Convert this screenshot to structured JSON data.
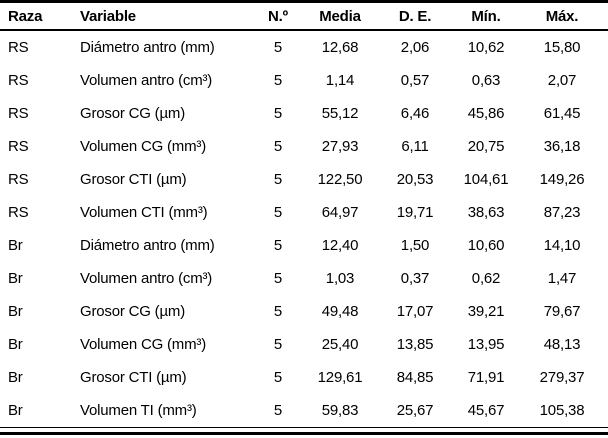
{
  "table": {
    "columns": [
      {
        "label": "Raza"
      },
      {
        "label": "Variable"
      },
      {
        "label": "N.º"
      },
      {
        "label": "Media"
      },
      {
        "label": "D. E."
      },
      {
        "label": "Mín."
      },
      {
        "label": "Máx."
      }
    ],
    "rows": [
      {
        "cells": [
          "RS",
          "Diámetro antro (mm)",
          "5",
          "12,68",
          "2,06",
          "10,62",
          "15,80"
        ]
      },
      {
        "cells": [
          "RS",
          "Volumen antro (cm³)",
          "5",
          "1,14",
          "0,57",
          "0,63",
          "2,07"
        ]
      },
      {
        "cells": [
          "RS",
          "Grosor CG (µm)",
          "5",
          "55,12",
          "6,46",
          "45,86",
          "61,45"
        ]
      },
      {
        "cells": [
          "RS",
          "Volumen CG (mm³)",
          "5",
          "27,93",
          "6,11",
          "20,75",
          "36,18"
        ]
      },
      {
        "cells": [
          "RS",
          "Grosor CTI (µm)",
          "5",
          "122,50",
          "20,53",
          "104,61",
          "149,26"
        ]
      },
      {
        "cells": [
          "RS",
          "Volumen CTI (mm³)",
          "5",
          "64,97",
          "19,71",
          "38,63",
          "87,23"
        ]
      },
      {
        "cells": [
          "Br",
          "Diámetro antro (mm)",
          "5",
          "12,40",
          "1,50",
          "10,60",
          "14,10"
        ]
      },
      {
        "cells": [
          "Br",
          "Volumen antro (cm³)",
          "5",
          "1,03",
          "0,37",
          "0,62",
          "1,47"
        ]
      },
      {
        "cells": [
          "Br",
          "Grosor CG (µm)",
          "5",
          "49,48",
          "17,07",
          "39,21",
          "79,67"
        ]
      },
      {
        "cells": [
          "Br",
          "Volumen CG (mm³)",
          "5",
          "25,40",
          "13,85",
          "13,95",
          "48,13"
        ]
      },
      {
        "cells": [
          "Br",
          "Grosor CTI (µm)",
          "5",
          "129,61",
          "84,85",
          "71,91",
          "279,37"
        ]
      },
      {
        "cells": [
          "Br",
          "Volumen TI (mm³)",
          "5",
          "59,83",
          "25,67",
          "45,67",
          "105,38"
        ]
      }
    ]
  },
  "colors": {
    "text": "#000000",
    "rule": "#000000",
    "background": "#ffffff"
  }
}
